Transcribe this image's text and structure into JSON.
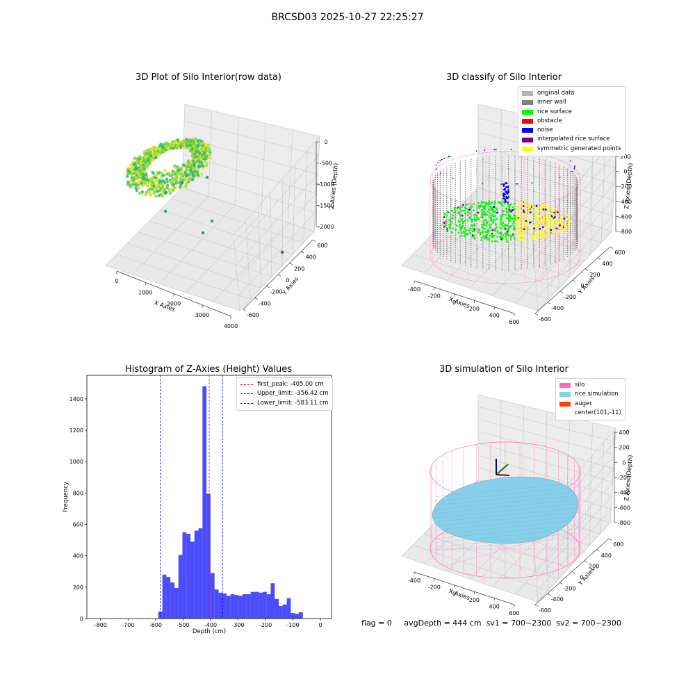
{
  "suptitle": "BRCSD03 2025-10-27 22:25:27",
  "chart_data": [
    {
      "id": "raw",
      "type": "scatter",
      "title": "3D Plot of Silo Interior(row data)",
      "xlabel": "X Axies",
      "ylabel": "Y Axies",
      "zlabel": "Z Axies (Depth)",
      "x_ticks": [
        "0",
        "1000",
        "2000",
        "3000",
        "4000"
      ],
      "y_ticks": [
        "-600",
        "-400",
        "-200",
        "0",
        "200",
        "400",
        "600"
      ],
      "z_ticks": [
        "0",
        "-500",
        "-1000",
        "-1500",
        "-2000"
      ],
      "colors": [
        "#d9e61b",
        "#a6d934",
        "#66cc55",
        "#2fb47c",
        "#1f9e89",
        "#8e3a9c"
      ]
    },
    {
      "id": "classify",
      "type": "scatter",
      "title": "3D classify of Silo Interior",
      "xlabel": "X Axies",
      "ylabel": "Y Axies",
      "zlabel": "Z Axies (Depth)",
      "x_ticks": [
        "-400",
        "-200",
        "0",
        "200",
        "400",
        "600"
      ],
      "y_ticks": [
        "-600",
        "-400",
        "-200",
        "0",
        "200",
        "400",
        "600"
      ],
      "z_ticks": [
        "200",
        "0",
        "-200",
        "-400",
        "-600",
        "-800"
      ],
      "legend": [
        {
          "label": "original data",
          "color": "#b3b3b3"
        },
        {
          "label": "inner wall",
          "color": "#808080"
        },
        {
          "label": "rice surface",
          "color": "#00ff00"
        },
        {
          "label": "obstacle",
          "color": "#ff0000"
        },
        {
          "label": "noise",
          "color": "#0000ff"
        },
        {
          "label": "interpolated rice surface",
          "color": "#800080"
        },
        {
          "label": "symmetric generated points",
          "color": "#ffff00"
        }
      ]
    },
    {
      "id": "hist",
      "type": "bar",
      "title": "Histogram of Z-Axies (Height) Values",
      "xlabel": "Depth (cm)",
      "ylabel": "Frequency",
      "xlim": [
        -850,
        40
      ],
      "ylim": [
        0,
        1550
      ],
      "x_ticks": [
        -800,
        -700,
        -600,
        -500,
        -400,
        -300,
        -200,
        -100,
        0
      ],
      "y_ticks": [
        0,
        200,
        400,
        600,
        800,
        1000,
        1200,
        1400
      ],
      "bar_color": "#0000ff",
      "bin_start": -590,
      "bin_width": 14.6,
      "values": [
        45,
        280,
        265,
        230,
        195,
        405,
        550,
        540,
        490,
        560,
        575,
        1480,
        795,
        290,
        185,
        165,
        160,
        145,
        155,
        150,
        145,
        155,
        155,
        170,
        170,
        165,
        170,
        155,
        225,
        125,
        80,
        90,
        130,
        35,
        30,
        40
      ],
      "lines": [
        {
          "label": "first_peak: -405.00 cm",
          "x": -405,
          "color": "#ff0000"
        },
        {
          "label": "Upper_limit: -356.42 cm",
          "x": -356.42,
          "color": "#0000ff"
        },
        {
          "label": "Lower_limit: -583.11 cm",
          "x": -583.11,
          "color": "#0000ff"
        }
      ]
    },
    {
      "id": "sim",
      "type": "surface",
      "title": "3D simulation of Silo Interior",
      "xlabel": "X Axies",
      "ylabel": "Y Axies",
      "zlabel": "Z Axies (Depth)",
      "x_ticks": [
        "-400",
        "-200",
        "0",
        "200",
        "400",
        "600"
      ],
      "y_ticks": [
        "-600",
        "-400",
        "-200",
        "0",
        "200",
        "400",
        "600"
      ],
      "z_ticks": [
        "400",
        "200",
        "0",
        "-200",
        "-400",
        "-600",
        "-800"
      ],
      "legend": [
        {
          "label": "silo",
          "color": "#ff69b4"
        },
        {
          "label": "rice simulation",
          "color": "#87ceeb"
        },
        {
          "label": "auger",
          "color": "#ff4500"
        },
        {
          "label": "center(101,-11)",
          "color": ""
        }
      ]
    }
  ],
  "footer": {
    "flag": "flag = 0",
    "avg": "avgDepth = 444 cm",
    "sv1": "sv1 = 700~2300",
    "sv2": "sv2 = 700~2300"
  }
}
